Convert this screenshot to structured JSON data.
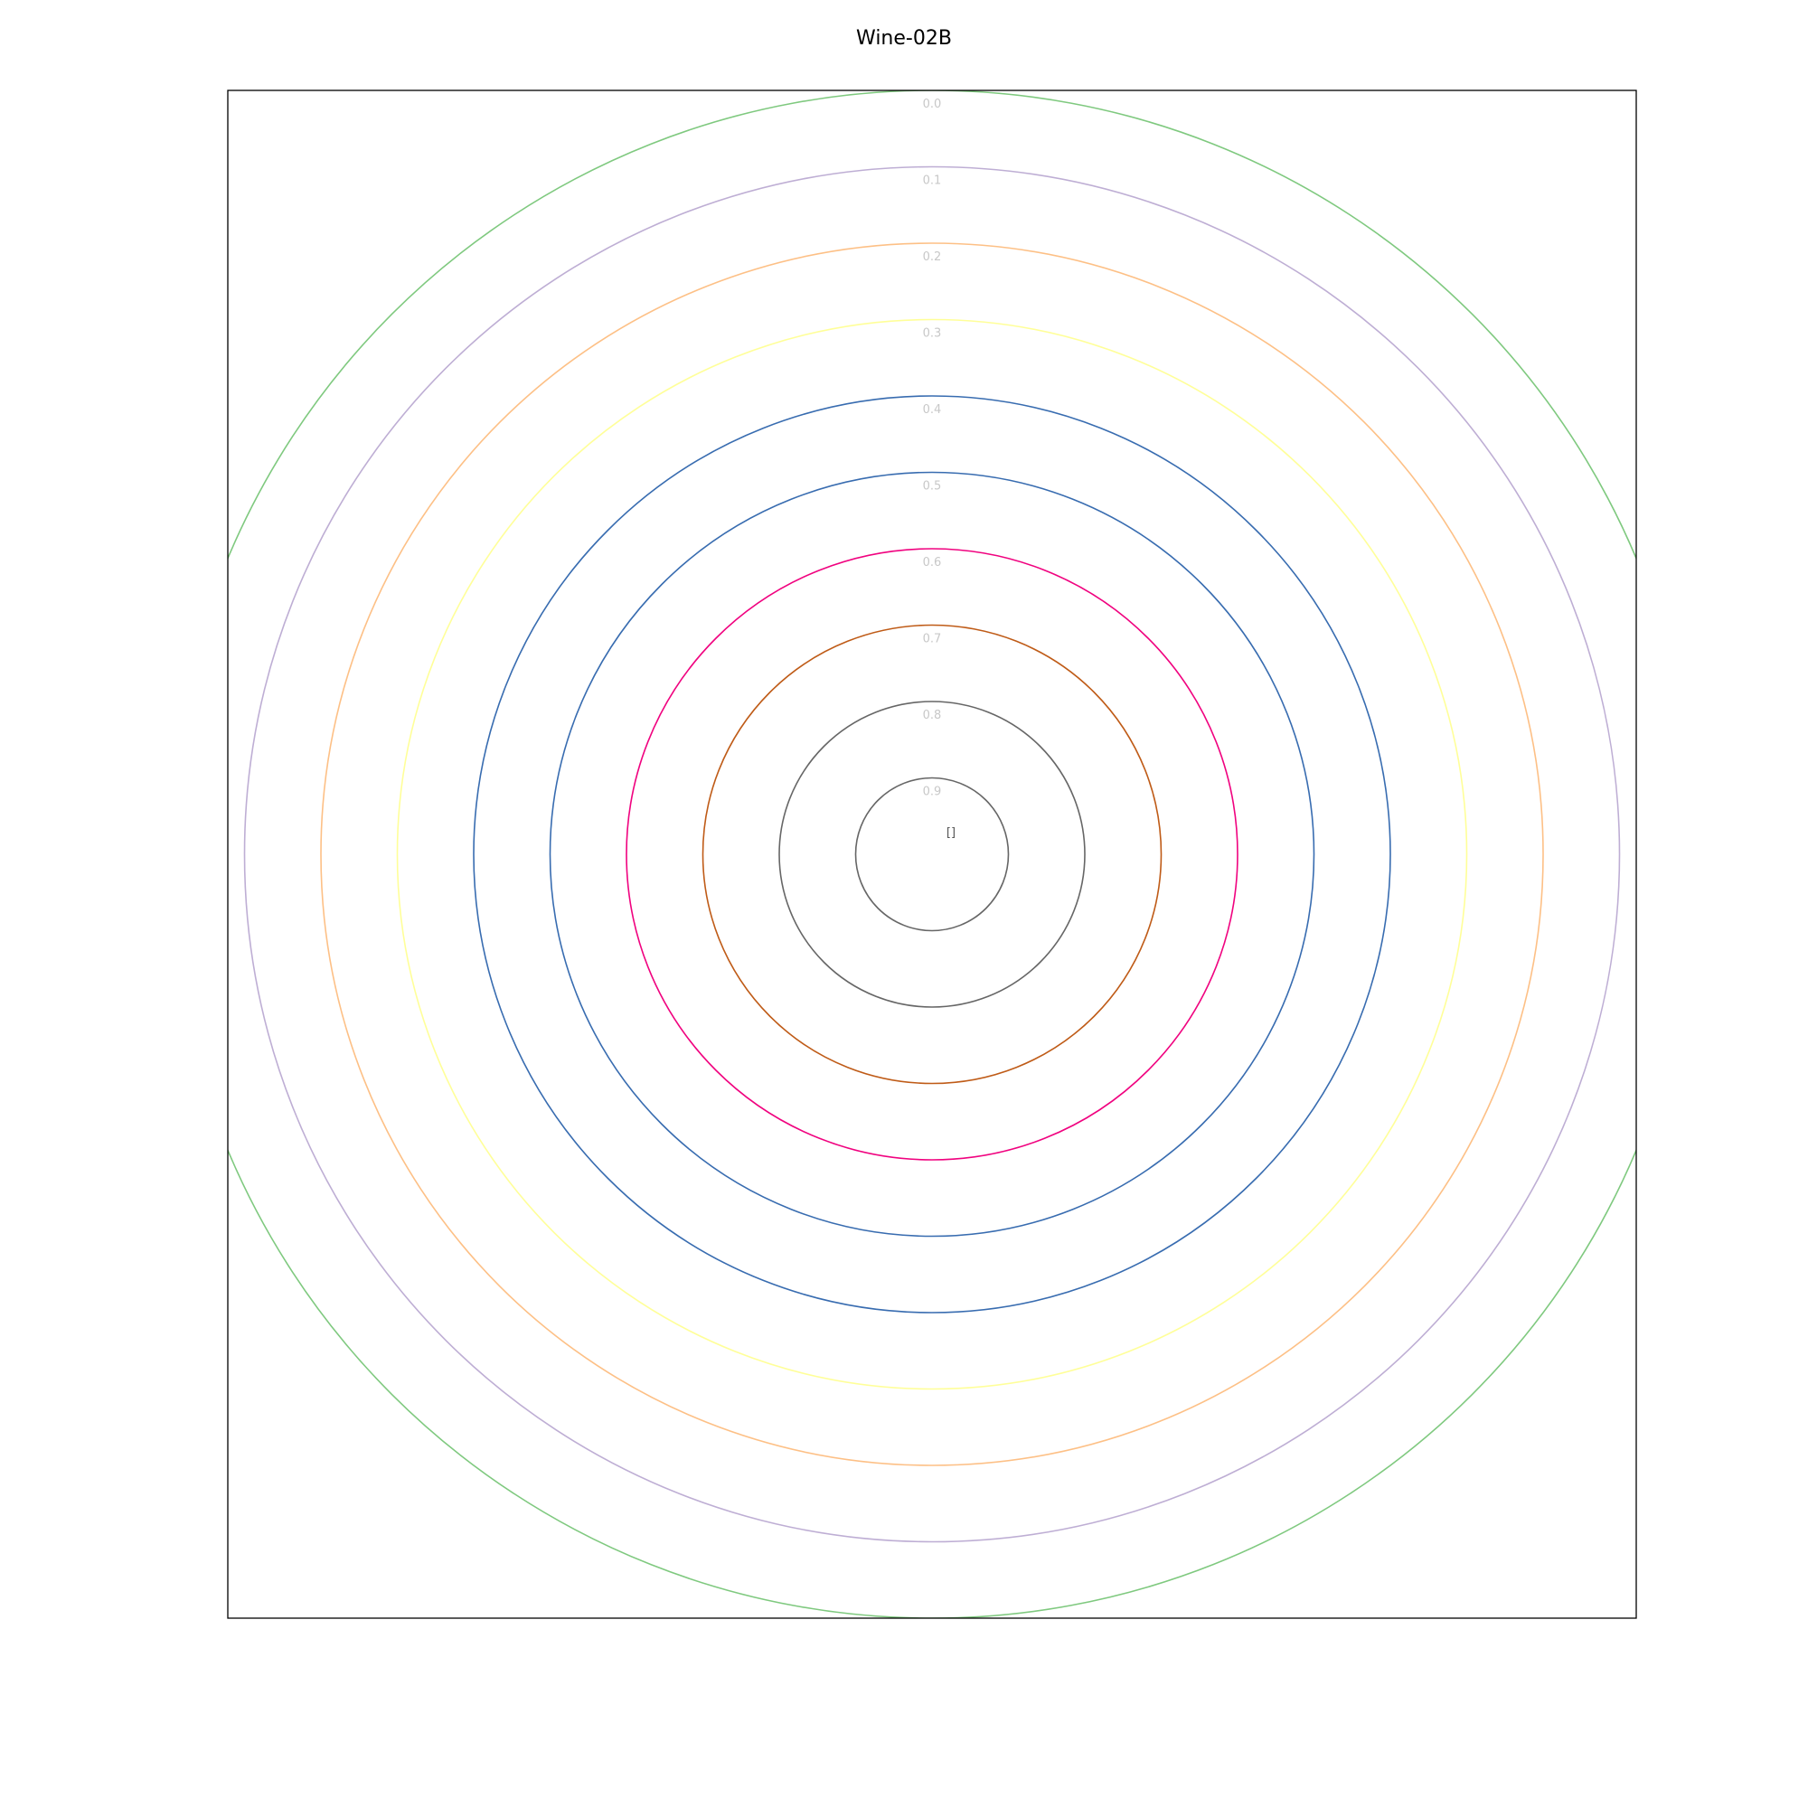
{
  "chart_data": {
    "type": "radar",
    "title": "Wine-02B",
    "center_label": "[]",
    "radial_ticks": [
      {
        "value": 0.0,
        "label": "0.0",
        "color": "#7fc97f"
      },
      {
        "value": 0.1,
        "label": "0.1",
        "color": "#beaed4"
      },
      {
        "value": 0.2,
        "label": "0.2",
        "color": "#fdc086"
      },
      {
        "value": 0.3,
        "label": "0.3",
        "color": "#ffff99"
      },
      {
        "value": 0.4,
        "label": "0.4",
        "color": "#386cb0"
      },
      {
        "value": 0.5,
        "label": "0.5",
        "color": "#386cb0"
      },
      {
        "value": 0.6,
        "label": "0.6",
        "color": "#f0027f"
      },
      {
        "value": 0.7,
        "label": "0.7",
        "color": "#bf5b17"
      },
      {
        "value": 0.8,
        "label": "0.8",
        "color": "#666666"
      },
      {
        "value": 0.9,
        "label": "0.9",
        "color": "#666666"
      }
    ],
    "rlim": [
      0.0,
      1.0
    ],
    "radial_axis_reversed": true,
    "grid": true,
    "frame_color": "#000000"
  }
}
